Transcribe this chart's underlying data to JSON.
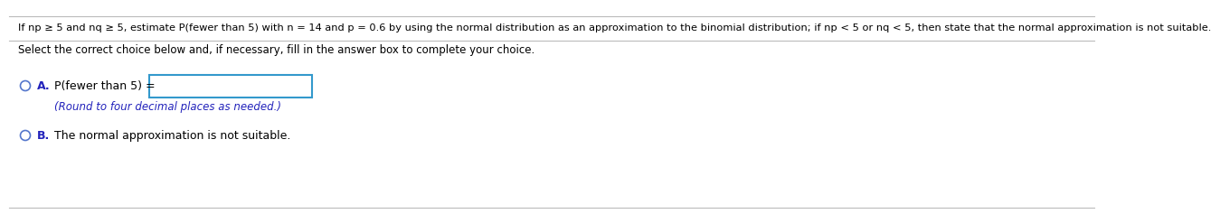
{
  "bg_color": "#ffffff",
  "header_text": "If np ≥ 5 and nq ≥ 5, estimate P(fewer than 5) with n = 14 and p = 0.6 by using the normal distribution as an approximation to the binomial distribution; if np < 5 or nq < 5, then state that the normal approximation is not suitable.",
  "subheader_text": "Select the correct choice below and, if necessary, fill in the answer box to complete your choice.",
  "label_A_color": "#2222bb",
  "label_B_color": "#2222bb",
  "round_note_color": "#2222bb",
  "circle_color": "#5577cc",
  "box_edge_color": "#3399cc",
  "text_color": "#000000",
  "sep_line_color": "#bbbbbb",
  "font_size_header": 8.2,
  "font_size_body": 8.5,
  "font_size_small": 8.2
}
